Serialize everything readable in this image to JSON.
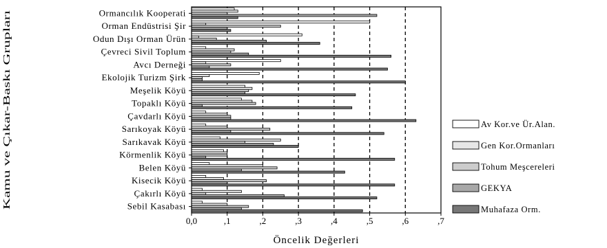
{
  "chart_data": {
    "type": "bar",
    "orientation": "horizontal",
    "title": "",
    "xlabel": "Öncelik Değerleri",
    "ylabel": "Kamu ve Çıkar-Baskı Grupları",
    "xlim": [
      0,
      0.7
    ],
    "x_ticks": [
      "0,0",
      ",1",
      ",2",
      ",3",
      ",4",
      ",5",
      ",6",
      ",7"
    ],
    "grid": "vertical dashed",
    "legend_position": "right",
    "categories": [
      "Ormancılık Kooperati",
      "Orman Endüstrisi Şir",
      "Odun Dışı Orman Ürün",
      "Çevreci Sivil Toplum",
      "Avcı Derneği",
      "Ekolojik Turizm Şirk",
      "Meşelik Köyü",
      "Topaklı Köyü",
      "Çavdarlı Köyü",
      "Sarıkoyak Köyü",
      "Sarıkavak Köyü",
      "Körmenlik Köyü",
      "Belen Köyü",
      "Kisecik Köyü",
      "Çakırlı Köyü",
      "Sebil Kasabası"
    ],
    "series": [
      {
        "name": "Av Kor.ve Ür.Alan.",
        "color": "#ffffff",
        "values": [
          0.12,
          0.5,
          0.31,
          0.04,
          0.25,
          0.19,
          0.15,
          0.14,
          0.04,
          0.04,
          0.08,
          0.09,
          0.05,
          0.04,
          0.03,
          0.03
        ]
      },
      {
        "name": "Gen Kor.Ormanları",
        "color": "#e6e6e6",
        "values": [
          0.13,
          0.04,
          0.02,
          0.12,
          0.04,
          0.05,
          0.17,
          0.17,
          0.1,
          0.1,
          0.25,
          0.1,
          0.2,
          0.09,
          0.14,
          0.1
        ]
      },
      {
        "name": "Tohum Meşcereleri",
        "color": "#cccccc",
        "values": [
          0.1,
          0.25,
          0.07,
          0.11,
          0.11,
          0.03,
          0.16,
          0.18,
          0.11,
          0.22,
          0.15,
          0.1,
          0.24,
          0.21,
          0.04,
          0.16
        ]
      },
      {
        "name": "GEKYA",
        "color": "#a8a8a8",
        "values": [
          0.52,
          0.1,
          0.21,
          0.16,
          0.05,
          0.03,
          0.15,
          0.03,
          0.11,
          0.11,
          0.23,
          0.04,
          0.14,
          0.1,
          0.26,
          0.14
        ]
      },
      {
        "name": "Muhafaza Orm.",
        "color": "#777777",
        "values": [
          0.13,
          0.11,
          0.36,
          0.56,
          0.55,
          0.6,
          0.46,
          0.45,
          0.63,
          0.54,
          0.3,
          0.57,
          0.43,
          0.57,
          0.52,
          0.48
        ]
      }
    ]
  }
}
